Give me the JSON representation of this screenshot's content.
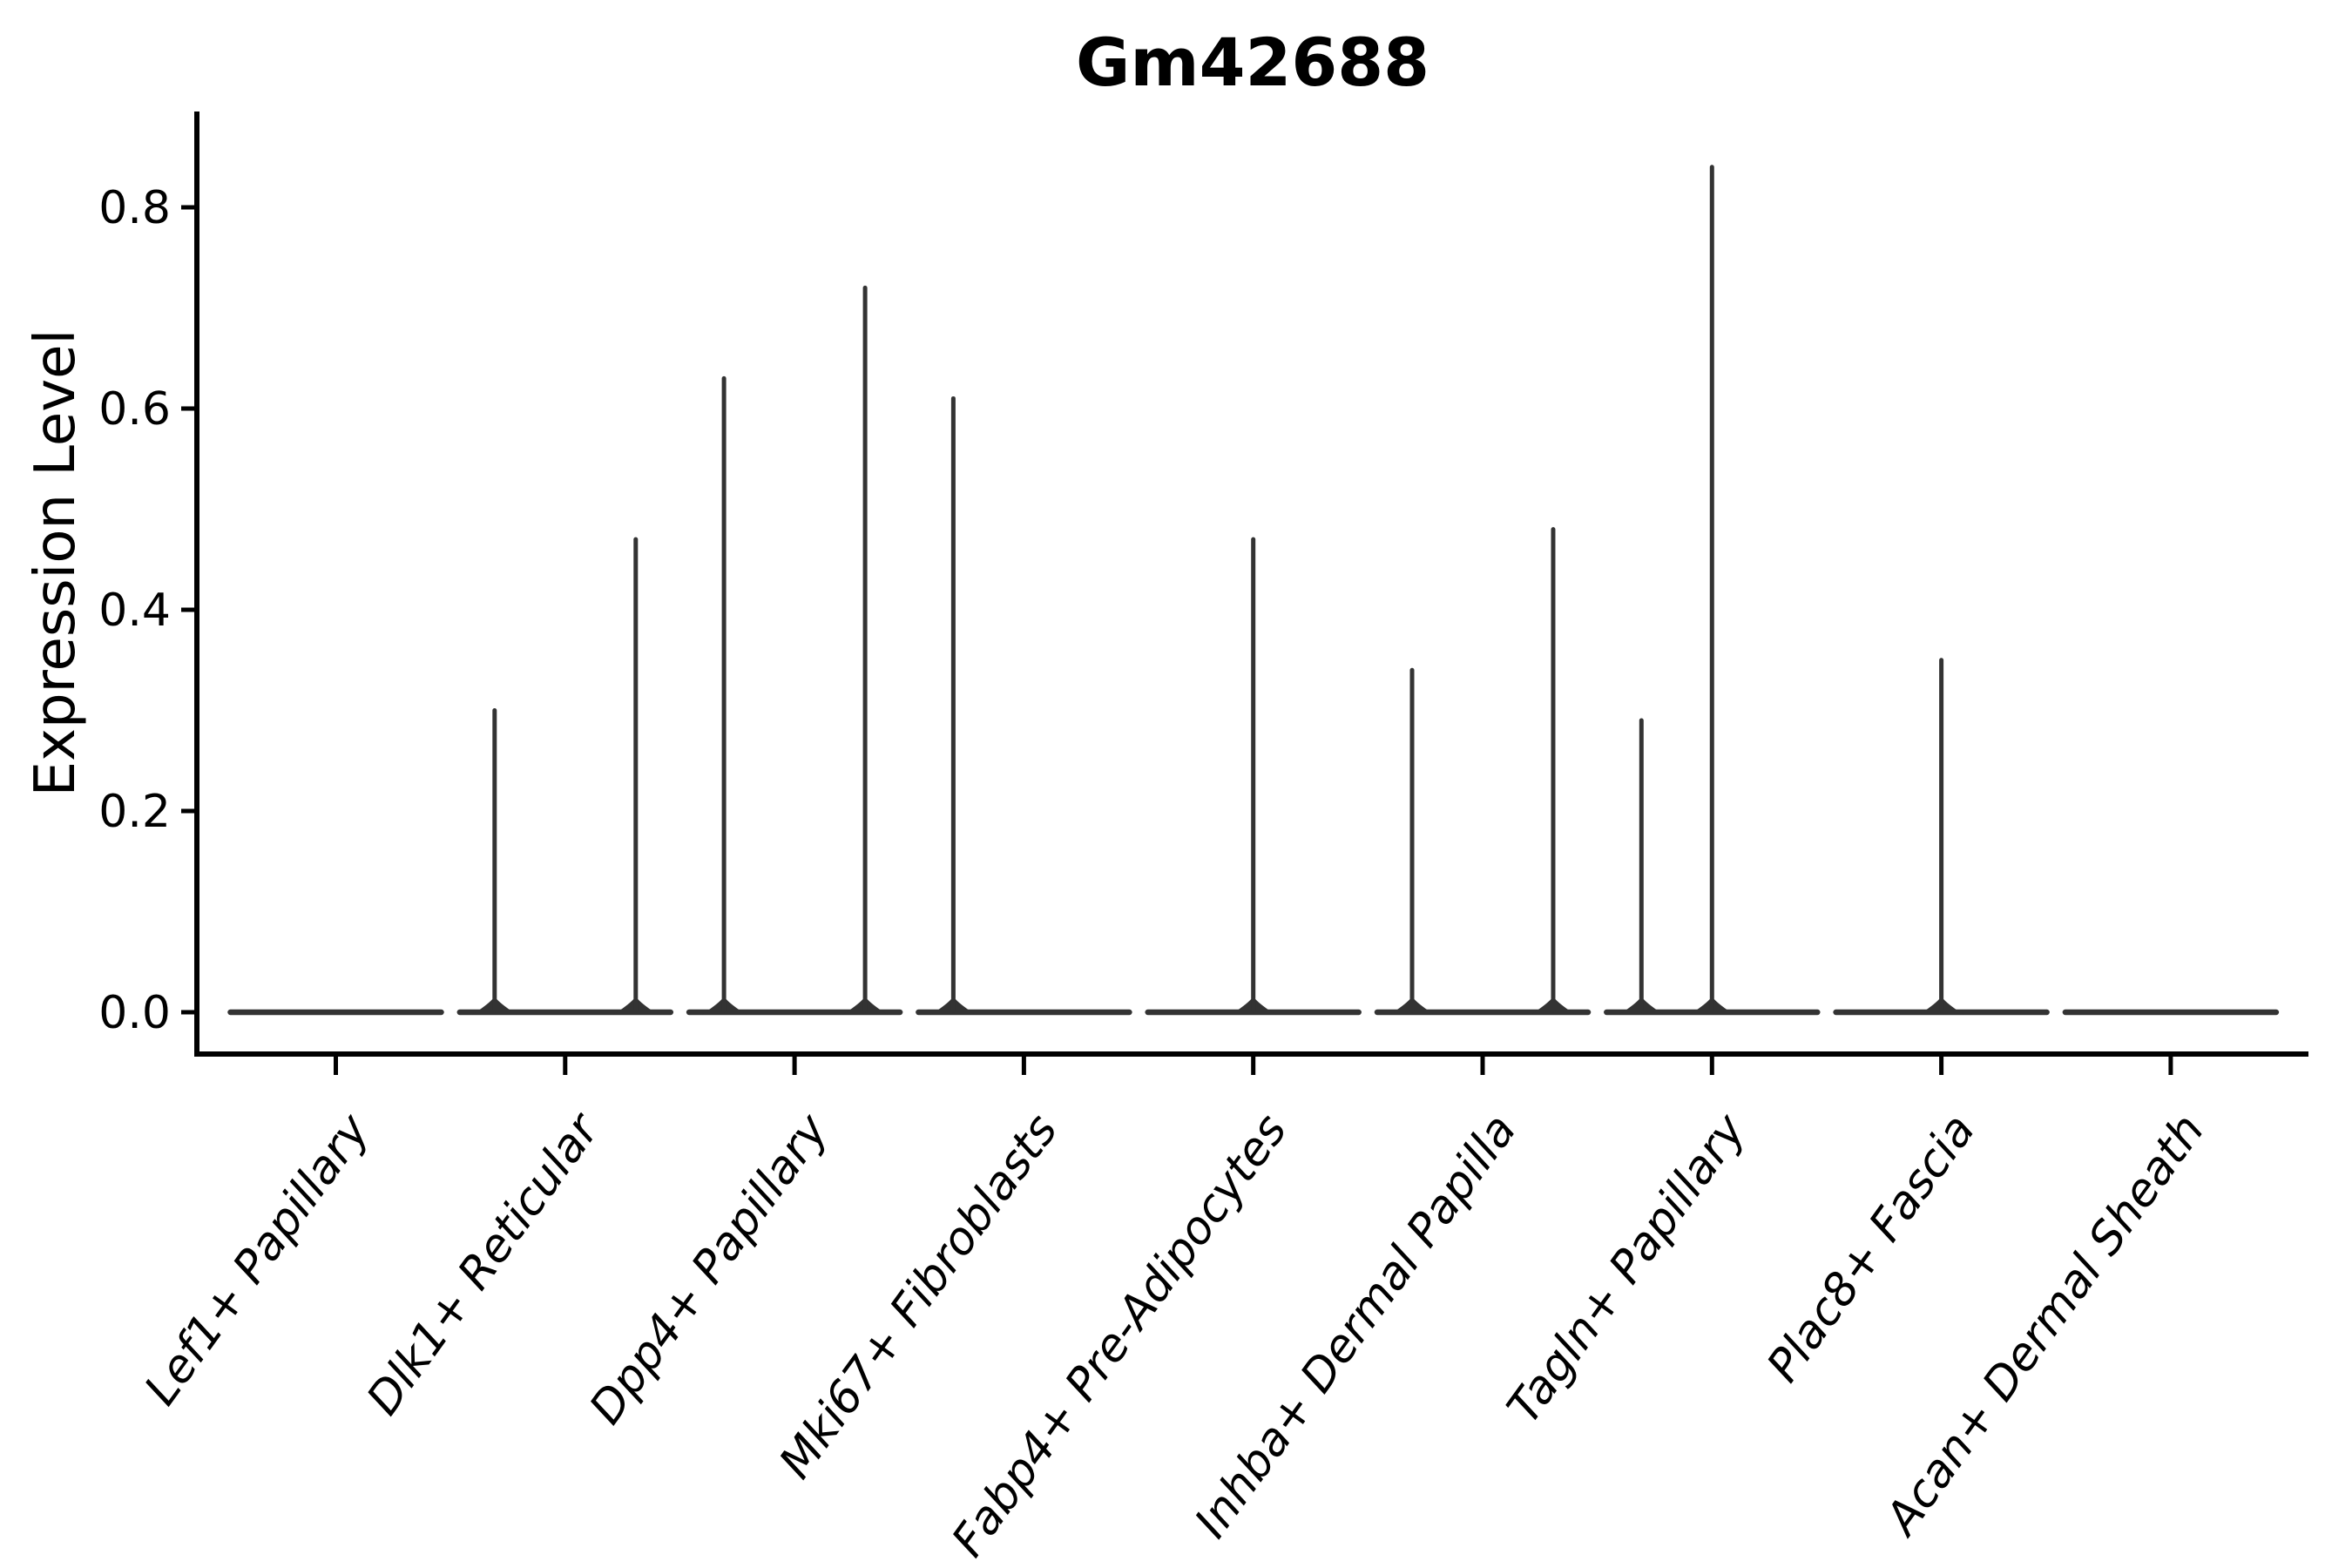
{
  "chart_data": {
    "type": "violin",
    "title": "Gm42688",
    "ylabel": "Expression Level",
    "xlabel": "",
    "yticks": [
      0.0,
      0.2,
      0.4,
      0.6,
      0.8
    ],
    "ytick_labels": [
      "0.0",
      "0.2",
      "0.4",
      "0.6",
      "0.8"
    ],
    "ylim": [
      -0.04,
      0.89
    ],
    "grid": false,
    "legend": "none",
    "categories": [
      "Lef1+ Papillary",
      "Dlk1+ Reticular",
      "Dpp4+ Papillary",
      "Mki67+ Fibroblasts",
      "Fabp4+ Pre-Adipocytes",
      "Inhba+ Dermal Papilla",
      "Tagln+ Papillary",
      "Plac8+ Fascia",
      "Acan+ Dermal Sheath"
    ],
    "violins": [
      {
        "category": "Lef1+ Papillary",
        "base_value": 0.0,
        "spikes": []
      },
      {
        "category": "Dlk1+ Reticular",
        "base_value": 0.0,
        "spikes": [
          {
            "position": "left",
            "max": 0.3
          },
          {
            "position": "right",
            "max": 0.47
          }
        ]
      },
      {
        "category": "Dpp4+ Papillary",
        "base_value": 0.0,
        "spikes": [
          {
            "position": "left",
            "max": 0.63
          },
          {
            "position": "right",
            "max": 0.72
          }
        ]
      },
      {
        "category": "Mki67+ Fibroblasts",
        "base_value": 0.0,
        "spikes": [
          {
            "position": "left",
            "max": 0.61
          }
        ]
      },
      {
        "category": "Fabp4+ Pre-Adipocytes",
        "base_value": 0.0,
        "spikes": [
          {
            "position": "center",
            "max": 0.47
          }
        ]
      },
      {
        "category": "Inhba+ Dermal Papilla",
        "base_value": 0.0,
        "spikes": [
          {
            "position": "left",
            "max": 0.34
          },
          {
            "position": "right",
            "max": 0.48
          }
        ]
      },
      {
        "category": "Tagln+ Papillary",
        "base_value": 0.0,
        "spikes": [
          {
            "position": "left",
            "max": 0.29
          },
          {
            "position": "center",
            "max": 0.84
          }
        ]
      },
      {
        "category": "Plac8+ Fascia",
        "base_value": 0.0,
        "spikes": [
          {
            "position": "center",
            "max": 0.35
          }
        ]
      },
      {
        "category": "Acan+ Dermal Sheath",
        "base_value": 0.0,
        "spikes": []
      }
    ],
    "colors": {
      "violin_line": "#333333",
      "axis": "#000000",
      "text": "#000000",
      "background": "#ffffff"
    }
  }
}
